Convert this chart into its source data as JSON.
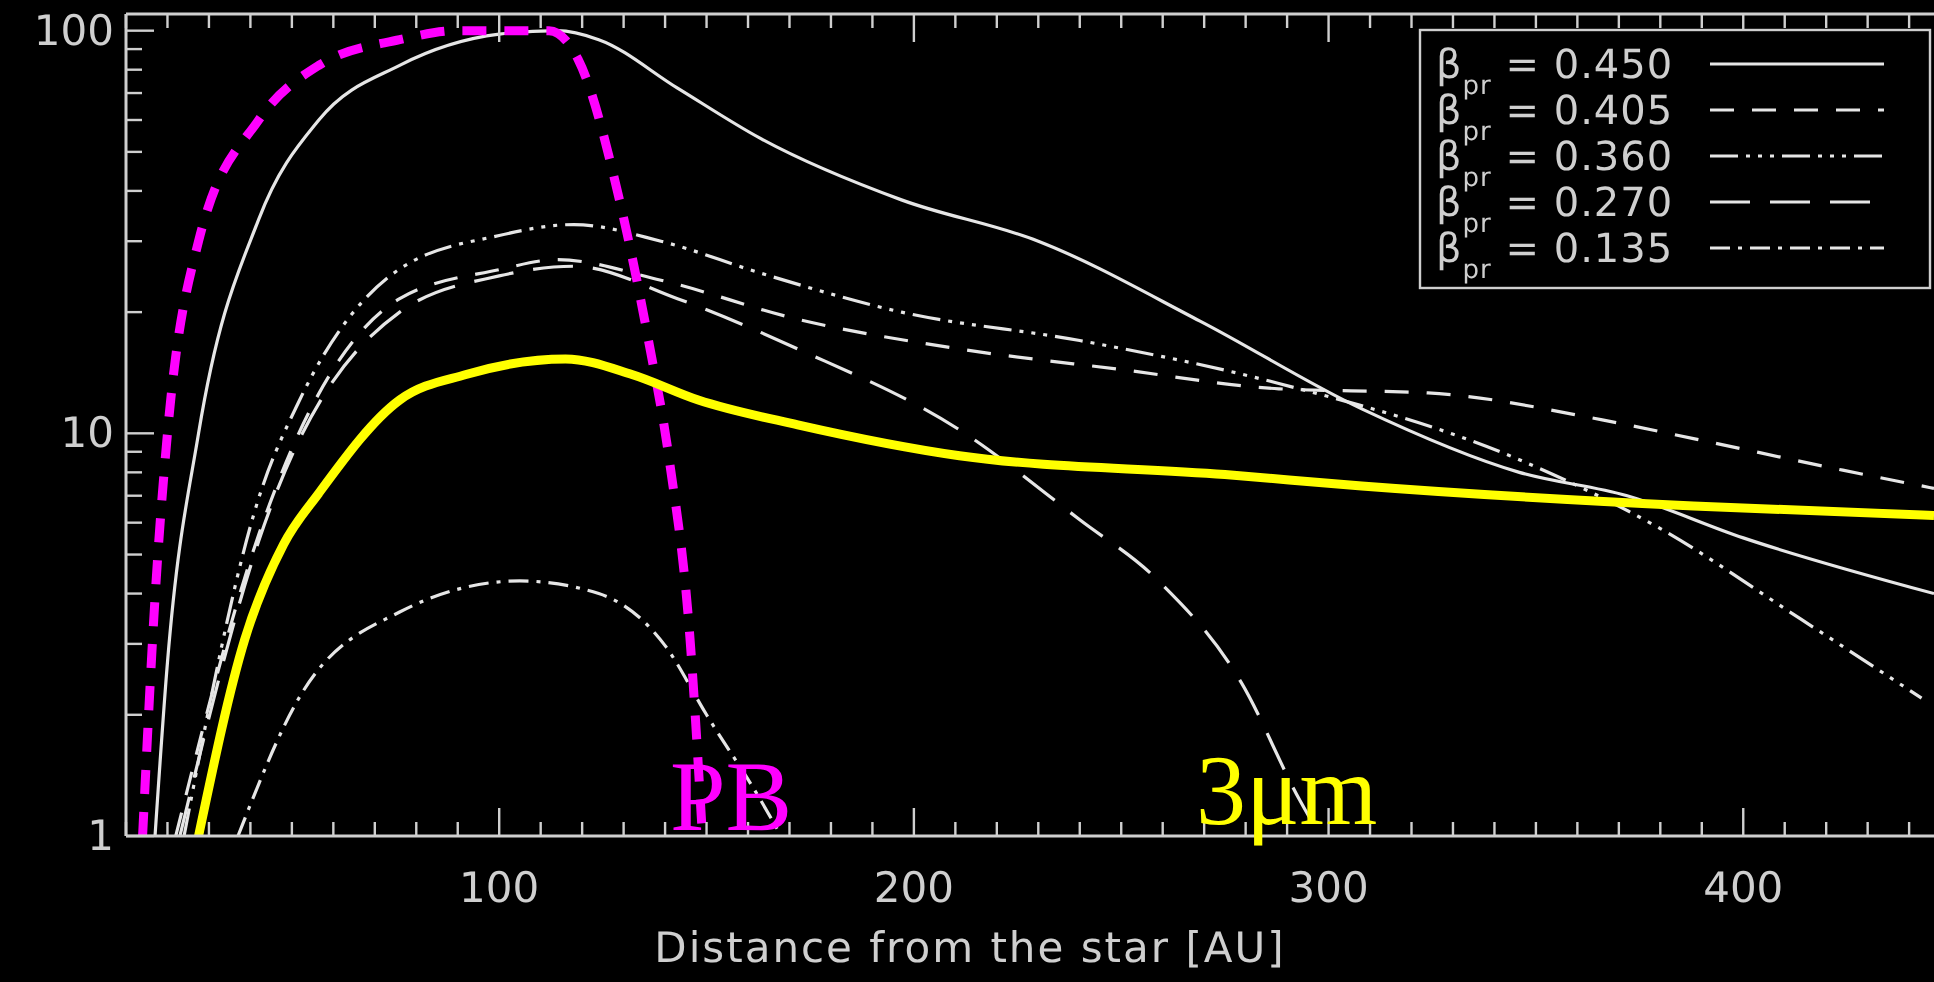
{
  "chart_data": {
    "type": "line",
    "xlabel": "Distance from the star [AU]",
    "xlim": [
      10,
      446
    ],
    "ylim": [
      1,
      110
    ],
    "log": "y",
    "legend": "top right",
    "xticks": [
      {
        "value": 10,
        "label": null
      },
      {
        "value": 20,
        "label": null
      },
      {
        "value": 30,
        "label": null
      },
      {
        "value": 40,
        "label": null
      },
      {
        "value": 50,
        "label": null
      },
      {
        "value": 60,
        "label": null
      },
      {
        "value": 70,
        "label": null
      },
      {
        "value": 80,
        "label": null
      },
      {
        "value": 90,
        "label": null
      },
      100,
      {
        "value": 110,
        "label": null
      },
      {
        "value": 120,
        "label": null
      },
      {
        "value": 130,
        "label": null
      },
      {
        "value": 140,
        "label": null
      },
      {
        "value": 150,
        "label": null
      },
      {
        "value": 160,
        "label": null
      },
      {
        "value": 170,
        "label": null
      },
      {
        "value": 180,
        "label": null
      },
      {
        "value": 190,
        "label": null
      },
      200,
      {
        "value": 210,
        "label": null
      },
      {
        "value": 220,
        "label": null
      },
      {
        "value": 230,
        "label": null
      },
      {
        "value": 240,
        "label": null
      },
      {
        "value": 250,
        "label": null
      },
      {
        "value": 260,
        "label": null
      },
      {
        "value": 270,
        "label": null
      },
      {
        "value": 280,
        "label": null
      },
      {
        "value": 290,
        "label": null
      },
      300,
      {
        "value": 310,
        "label": null
      },
      {
        "value": 320,
        "label": null
      },
      {
        "value": 330,
        "label": null
      },
      {
        "value": 340,
        "label": null
      },
      {
        "value": 350,
        "label": null
      },
      {
        "value": 360,
        "label": null
      },
      {
        "value": 370,
        "label": null
      },
      {
        "value": 380,
        "label": null
      },
      {
        "value": 390,
        "label": null
      },
      400,
      {
        "value": 410,
        "label": null
      },
      {
        "value": 420,
        "label": null
      },
      {
        "value": 430,
        "label": null
      },
      {
        "value": 440,
        "label": null
      }
    ],
    "yticks": [
      1,
      {
        "value": 2,
        "label": null
      },
      {
        "value": 3,
        "label": null
      },
      {
        "value": 4,
        "label": null
      },
      {
        "value": 5,
        "label": null
      },
      {
        "value": 6,
        "label": null
      },
      {
        "value": 7,
        "label": null
      },
      {
        "value": 8,
        "label": null
      },
      {
        "value": 9,
        "label": null
      },
      10,
      {
        "value": 20,
        "label": null
      },
      {
        "value": 30,
        "label": null
      },
      {
        "value": 40,
        "label": null
      },
      {
        "value": 50,
        "label": null
      },
      {
        "value": 60,
        "label": null
      },
      {
        "value": 70,
        "label": null
      },
      {
        "value": 80,
        "label": null
      },
      {
        "value": 90,
        "label": null
      },
      100
    ],
    "series": [
      {
        "name": "β$_{pr}$ = 0.450",
        "color": "#e6e6e6",
        "line_style": "solid",
        "x": [
          17,
          20,
          27.5,
          42,
          56.5,
          76,
          100,
          114,
          124,
          143,
          163,
          197,
          230,
          269,
          308,
          346,
          372,
          400,
          446
        ],
        "values": [
          1,
          2.7,
          10,
          34,
          60,
          82,
          98,
          100,
          95,
          72,
          54,
          38,
          30,
          19,
          11.5,
          8,
          7,
          5.5,
          4
        ]
      },
      {
        "name": "β$_{pr}$ = 0.405",
        "color": "#e6e6e6",
        "line_style": "dashed",
        "x": [
          22,
          42,
          76,
          100,
          114,
          139,
          172,
          211,
          250,
          288,
          324,
          366,
          388,
          424,
          446
        ],
        "values": [
          1,
          5.6,
          21.6,
          25.5,
          27,
          24,
          19.2,
          16.2,
          14.4,
          12.9,
          12.6,
          10.8,
          9.7,
          8.1,
          7.3
        ]
      },
      {
        "name": "β$_{pr}$ = 0.360",
        "color": "#e6e6e6",
        "line_style": "dashdotdot",
        "x": [
          24,
          42,
          51.7,
          76,
          100,
          118,
          139,
          163,
          197,
          240,
          288,
          346,
          380,
          414,
          443
        ],
        "values": [
          1,
          6.9,
          12,
          25.6,
          31,
          33,
          30,
          25,
          20,
          17,
          13.3,
          8.6,
          5.8,
          3.45,
          2.2
        ]
      },
      {
        "name": "β$_{pr}$ = 0.270",
        "color": "#e6e6e6",
        "line_style": "longdash",
        "x": [
          23,
          42,
          76,
          100,
          118,
          143,
          172,
          211,
          240,
          259,
          279,
          293,
          298
        ],
        "values": [
          1,
          5.4,
          20,
          24.6,
          26,
          21.6,
          16.2,
          10.2,
          6.1,
          4.3,
          2.4,
          1.23,
          1
        ]
      },
      {
        "name": "β$_{pr}$ = 0.135",
        "color": "#e6e6e6",
        "line_style": "dashdot",
        "x": [
          37,
          51.7,
          76,
          105,
          124,
          140,
          150,
          163,
          168
        ],
        "values": [
          1,
          2.2,
          3.6,
          4.3,
          4,
          2.97,
          2,
          1.23,
          1
        ]
      },
      {
        "color": "#ff00ff",
        "line_style": "dashed",
        "x": [
          14,
          17,
          20,
          27.5,
          42,
          56.5,
          76,
          90,
          112,
          119,
          129,
          136,
          141,
          146,
          149
        ],
        "values": [
          1,
          3.9,
          10,
          30,
          60,
          82,
          95,
          100,
          100,
          85,
          38,
          17,
          8.6,
          3.1,
          1
        ]
      },
      {
        "color": "#ffff00",
        "line_style": "solid",
        "x": [
          27.5,
          38.6,
          48,
          56.5,
          76,
          92,
          116,
          132,
          148,
          172,
          211,
          275,
          308,
          388,
          446
        ],
        "values": [
          1,
          3.07,
          5.3,
          7.1,
          12.1,
          14,
          15.3,
          14,
          12.1,
          10.5,
          8.8,
          7.9,
          7.4,
          6.6,
          6.25
        ]
      }
    ],
    "annotations": [
      "PB",
      "3μm"
    ]
  }
}
